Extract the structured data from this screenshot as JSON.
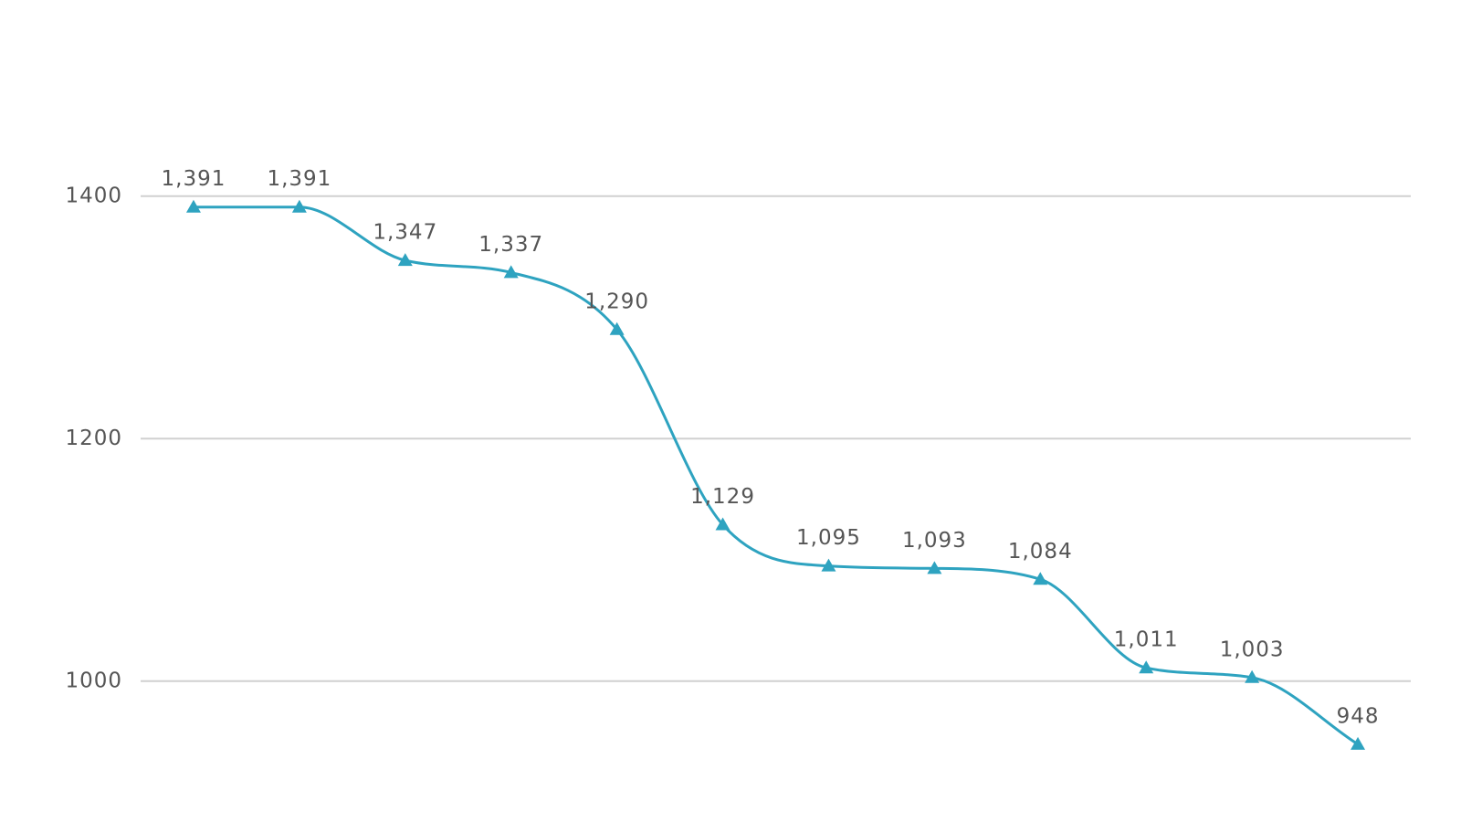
{
  "chart_data": {
    "type": "line",
    "categories": [
      null,
      null,
      null,
      null,
      null,
      null,
      null,
      null,
      null,
      null,
      null,
      null
    ],
    "values": [
      1391,
      1391,
      1347,
      1337,
      1290,
      1129,
      1095,
      1093,
      1084,
      1011,
      1003,
      948
    ],
    "value_labels": [
      "1,391",
      "1,391",
      "1,347",
      "1,337",
      "1,290",
      "1,129",
      "1,095",
      "1,093",
      "1,084",
      "1,011",
      "1,003",
      "948"
    ],
    "color": "#2ea3c0",
    "ylim": [
      920,
      1500
    ],
    "yticks": [
      1000,
      1200,
      1400
    ],
    "grid": true
  }
}
